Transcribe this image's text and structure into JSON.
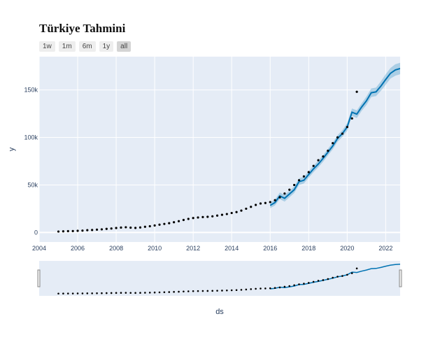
{
  "title": "Türkiye Tahmini",
  "range_buttons": [
    "1w",
    "1m",
    "6m",
    "1y",
    "all"
  ],
  "active_range": "all",
  "colors": {
    "plot_bg": "#e5ecf6",
    "grid": "#ffffff",
    "forecast_line": "#0072b2",
    "band": "rgba(0,114,178,0.25)",
    "points": "#000000"
  },
  "chart_data": {
    "type": "line",
    "title": "Türkiye Tahmini",
    "xlabel": "ds",
    "ylabel": "y",
    "xlim": [
      2004.0,
      2022.75
    ],
    "ylim": [
      -10000,
      185000
    ],
    "x_ticks": [
      2004,
      2006,
      2008,
      2010,
      2012,
      2014,
      2016,
      2018,
      2020,
      2022
    ],
    "x_tick_labels": [
      "2004",
      "2006",
      "2008",
      "2010",
      "2012",
      "2014",
      "2016",
      "2018",
      "2020",
      "2022"
    ],
    "y_ticks": [
      0,
      50000,
      100000,
      150000
    ],
    "y_tick_labels": [
      "0",
      "50k",
      "100k",
      "150k"
    ],
    "grid": true,
    "series": [
      {
        "kind": "scatter",
        "x": [
          2005.0,
          2005.25,
          2005.5,
          2005.75,
          2006.0,
          2006.25,
          2006.5,
          2006.75,
          2007.0,
          2007.25,
          2007.5,
          2007.75,
          2008.0,
          2008.25,
          2008.5,
          2008.75,
          2009.0,
          2009.25,
          2009.5,
          2009.75,
          2010.0,
          2010.25,
          2010.5,
          2010.75,
          2011.0,
          2011.25,
          2011.5,
          2011.75,
          2012.0,
          2012.25,
          2012.5,
          2012.75,
          2013.0,
          2013.25,
          2013.5,
          2013.75,
          2014.0,
          2014.25,
          2014.5,
          2014.75,
          2015.0,
          2015.25,
          2015.5,
          2015.75,
          2016.0,
          2016.25,
          2016.5,
          2016.75,
          2017.0,
          2017.25,
          2017.5,
          2017.75,
          2018.0,
          2018.25,
          2018.5,
          2018.75,
          2019.0,
          2019.25,
          2019.5,
          2019.75,
          2020.0,
          2020.25,
          2020.5
        ],
        "y": [
          1000,
          1200,
          1400,
          1500,
          1800,
          2000,
          2400,
          2600,
          3000,
          3300,
          3800,
          4200,
          4700,
          5200,
          5500,
          5100,
          4800,
          5300,
          6000,
          6600,
          7400,
          8200,
          9000,
          9800,
          10800,
          11900,
          13200,
          14300,
          15200,
          15800,
          16200,
          16500,
          17000,
          17800,
          18600,
          19400,
          20500,
          21500,
          23000,
          25000,
          27000,
          29000,
          30500,
          31000,
          32000,
          34000,
          37000,
          41000,
          45000,
          50000,
          55000,
          59000,
          63500,
          70000,
          76000,
          80000,
          86000,
          94000,
          100000,
          104000,
          111000,
          120000,
          148000
        ]
      },
      {
        "kind": "line",
        "name": "forecast",
        "x": [
          2016.0,
          2016.25,
          2016.5,
          2016.75,
          2017.0,
          2017.25,
          2017.5,
          2017.75,
          2018.0,
          2018.25,
          2018.5,
          2018.75,
          2019.0,
          2019.25,
          2019.5,
          2019.75,
          2020.0,
          2020.25,
          2020.5,
          2020.75,
          2021.0,
          2021.25,
          2021.5,
          2021.75,
          2022.0,
          2022.25,
          2022.5,
          2022.75
        ],
        "y": [
          28500,
          31500,
          38500,
          36000,
          40500,
          45000,
          53500,
          55000,
          61000,
          67000,
          72000,
          78000,
          84500,
          91000,
          99000,
          104000,
          111000,
          126500,
          124500,
          132000,
          138500,
          147000,
          148000,
          154000,
          161000,
          167500,
          171000,
          172500
        ],
        "lower": [
          25500,
          28500,
          35000,
          32500,
          37000,
          41500,
          50000,
          51500,
          57500,
          63500,
          68500,
          74500,
          81000,
          87500,
          95500,
          100500,
          107000,
          122500,
          120500,
          128000,
          134000,
          142500,
          143500,
          149000,
          155500,
          162000,
          165000,
          166500
        ],
        "upper": [
          31500,
          34500,
          42000,
          39500,
          44000,
          48500,
          57000,
          58500,
          64500,
          70500,
          75500,
          81500,
          88000,
          94500,
          102500,
          107500,
          115000,
          130500,
          128500,
          136000,
          143000,
          151500,
          152500,
          159000,
          166500,
          173000,
          177000,
          178500
        ]
      }
    ],
    "range_slider": true
  }
}
